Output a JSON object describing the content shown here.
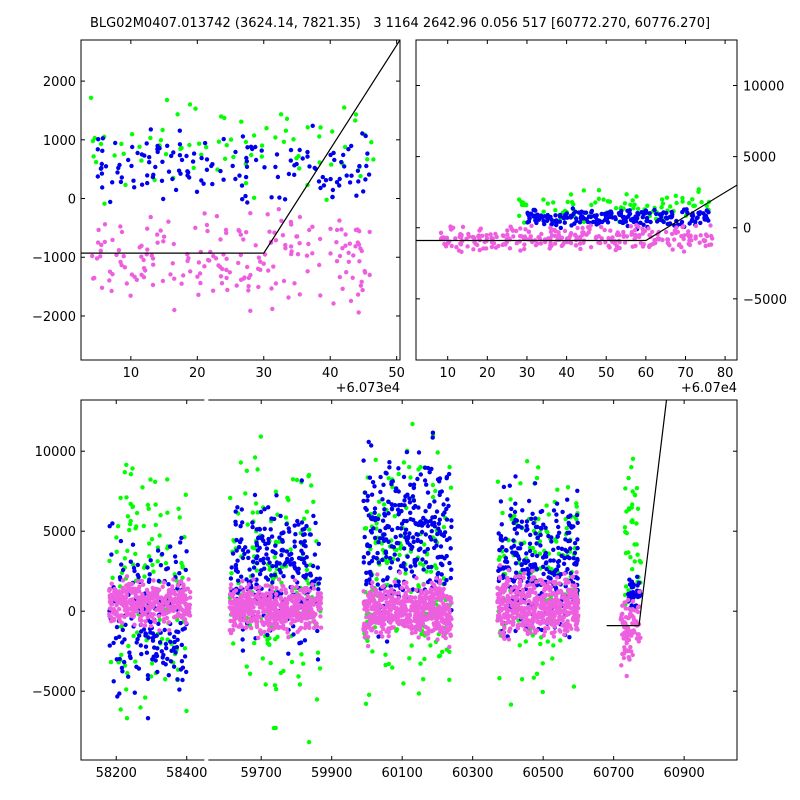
{
  "title": "BLG02M0407.013742 (3624.14, 7821.35)   3 1164 2642.96 0.056 517 [60772.270, 60776.270]",
  "colors": {
    "series_a": "#00ff00",
    "series_b": "#0000ee",
    "series_c": "#ee5fe0",
    "model": "#000000"
  },
  "chart_data": [
    {
      "name": "upper-left",
      "type": "scatter",
      "x_offset_label": "+6.073e4",
      "xlim": [
        2.5,
        50.5
      ],
      "ylim": [
        -2750,
        2700
      ],
      "xticks": [
        10,
        20,
        30,
        40,
        50
      ],
      "yticks": [
        -2000,
        -1000,
        0,
        1000,
        2000
      ],
      "ytick_side": "left",
      "grid": false,
      "model_line": {
        "x": [
          2.5,
          30,
          50.5
        ],
        "y": [
          -930,
          -930,
          2700
        ]
      },
      "clusters": [
        {
          "series": 0,
          "xmin": 3,
          "xmax": 47,
          "ymin": -200,
          "ymax": 2000,
          "n": 80,
          "seed": 11
        },
        {
          "series": 1,
          "xmin": 5,
          "xmax": 46,
          "ymin": -300,
          "ymax": 1400,
          "n": 150,
          "seed": 12
        },
        {
          "series": 2,
          "xmin": 3,
          "xmax": 46,
          "ymin": -2100,
          "ymax": 100,
          "n": 200,
          "seed": 13
        }
      ]
    },
    {
      "name": "upper-right",
      "type": "scatter",
      "x_offset_label": "+6.07e4",
      "xlim": [
        2,
        83
      ],
      "ylim": [
        -9300,
        13200
      ],
      "xticks": [
        10,
        20,
        30,
        40,
        50,
        60,
        70,
        80
      ],
      "yticks": [
        -5000,
        0,
        5000,
        10000
      ],
      "ytick_side": "right",
      "grid": false,
      "model_line": {
        "x": [
          2,
          60,
          83
        ],
        "y": [
          -900,
          -900,
          3000
        ]
      },
      "clusters": [
        {
          "series": 0,
          "xmin": 28,
          "xmax": 76,
          "ymin": 0,
          "ymax": 3000,
          "n": 90,
          "seed": 21
        },
        {
          "series": 1,
          "xmin": 30,
          "xmax": 76,
          "ymin": -200,
          "ymax": 1600,
          "n": 220,
          "seed": 22
        },
        {
          "series": 2,
          "xmin": 8,
          "xmax": 77,
          "ymin": -2000,
          "ymax": 500,
          "n": 300,
          "seed": 23
        }
      ]
    },
    {
      "name": "bottom",
      "type": "scatter",
      "xlim": [
        58100,
        61050
      ],
      "ylim": [
        -9300,
        13200
      ],
      "x_break": {
        "left": 58450,
        "right": 59550,
        "gap_pixels": 4
      },
      "xticks": [
        58200,
        58400,
        59700,
        59900,
        60100,
        60300,
        60500,
        60700,
        60900
      ],
      "yticks": [
        -5000,
        0,
        5000,
        10000
      ],
      "ytick_side": "left",
      "grid": false,
      "model_line": {
        "x": [
          60680,
          60772,
          60850
        ],
        "y": [
          -900,
          -900,
          13200
        ]
      },
      "clusters": [
        {
          "series": 0,
          "xmin": 58180,
          "xmax": 58400,
          "ymin": -9000,
          "ymax": 12500,
          "n": 120,
          "seed": 31
        },
        {
          "series": 1,
          "xmin": 58180,
          "xmax": 58400,
          "ymin": -7500,
          "ymax": 7000,
          "n": 200,
          "seed": 32
        },
        {
          "series": 2,
          "xmin": 58180,
          "xmax": 58410,
          "ymin": -1500,
          "ymax": 2500,
          "n": 400,
          "seed": 33
        },
        {
          "series": 0,
          "xmin": 59610,
          "xmax": 59870,
          "ymin": -9000,
          "ymax": 13000,
          "n": 150,
          "seed": 34
        },
        {
          "series": 1,
          "xmin": 59610,
          "xmax": 59870,
          "ymin": -4000,
          "ymax": 9000,
          "n": 280,
          "seed": 35
        },
        {
          "series": 2,
          "xmin": 59610,
          "xmax": 59870,
          "ymin": -2000,
          "ymax": 2300,
          "n": 500,
          "seed": 36
        },
        {
          "series": 0,
          "xmin": 59990,
          "xmax": 60240,
          "ymin": -8500,
          "ymax": 12500,
          "n": 170,
          "seed": 37
        },
        {
          "series": 1,
          "xmin": 59990,
          "xmax": 60240,
          "ymin": -3000,
          "ymax": 12000,
          "n": 320,
          "seed": 38
        },
        {
          "series": 2,
          "xmin": 59990,
          "xmax": 60240,
          "ymin": -2500,
          "ymax": 2500,
          "n": 550,
          "seed": 39
        },
        {
          "series": 0,
          "xmin": 60370,
          "xmax": 60600,
          "ymin": -8500,
          "ymax": 12500,
          "n": 150,
          "seed": 40
        },
        {
          "series": 1,
          "xmin": 60370,
          "xmax": 60600,
          "ymin": -3000,
          "ymax": 9000,
          "n": 280,
          "seed": 41
        },
        {
          "series": 2,
          "xmin": 60370,
          "xmax": 60600,
          "ymin": -2500,
          "ymax": 3000,
          "n": 500,
          "seed": 42
        },
        {
          "series": 0,
          "xmin": 60730,
          "xmax": 60778,
          "ymin": -1500,
          "ymax": 10500,
          "n": 40,
          "seed": 43
        },
        {
          "series": 1,
          "xmin": 60740,
          "xmax": 60778,
          "ymin": -500,
          "ymax": 2500,
          "n": 40,
          "seed": 44
        },
        {
          "series": 2,
          "xmin": 60720,
          "xmax": 60778,
          "ymin": -4500,
          "ymax": 2000,
          "n": 80,
          "seed": 45
        }
      ]
    }
  ]
}
